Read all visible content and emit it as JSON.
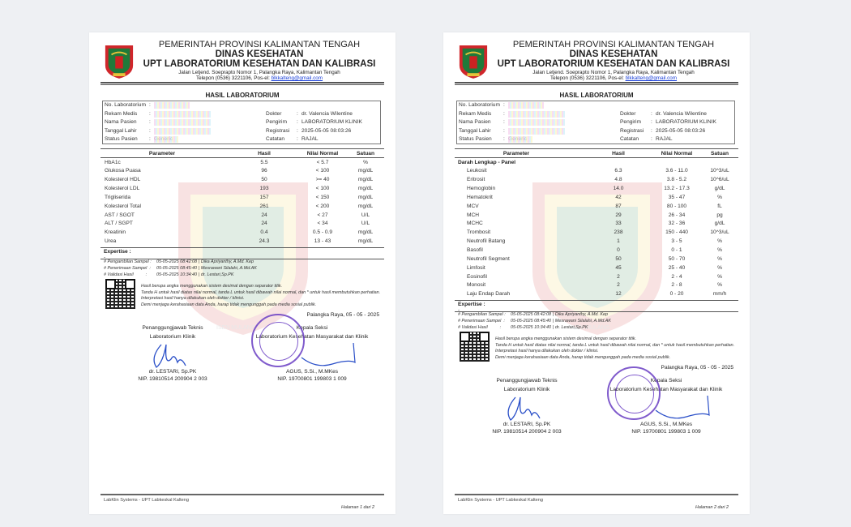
{
  "header": {
    "line1": "PEMERINTAH PROVINSI KALIMANTAN TENGAH",
    "line2": "DINAS KESEHATAN",
    "line3": "UPT LABORATORIUM KESEHATAN DAN KALIBRASI",
    "address": "Jalan Letjend. Soeprapto Nomor 1, Palangka Raya, Kalimantan Tengah",
    "phone": "Telepon (0536) 3221106, Pos-el: ",
    "email": "blkkalteng@gmail.com"
  },
  "title": "HASIL LABORATORIUM",
  "patient": {
    "left": [
      {
        "label": "No. Laboratorium",
        "value": ""
      },
      {
        "label": "Rekam Medis",
        "value": ""
      },
      {
        "label": "Nama Pasien",
        "value": ""
      },
      {
        "label": "Tanggal Lahir",
        "value": ""
      },
      {
        "label": "Status Pasien",
        "value": "Generic"
      }
    ],
    "right": [
      {
        "label": "Dokter",
        "value": "dr. Valencia Wilentine"
      },
      {
        "label": "Pengirim",
        "value": "LABORATORIUM KLINIK"
      },
      {
        "label": "Registrasi",
        "value": "2025-05-05 08:03:26"
      },
      {
        "label": "Catatan",
        "value": "RAJAL"
      }
    ]
  },
  "columns": [
    "Parameter",
    "Hasil",
    "Nilai Normal",
    "Satuan"
  ],
  "pages": [
    {
      "group": "",
      "rows": [
        [
          "HbA1c",
          "5.5",
          "< 5.7",
          "%"
        ],
        [
          "Glukosa Puasa",
          "96",
          "< 100",
          "mg/dL"
        ],
        [
          "Kolesterol HDL",
          "50",
          ">= 40",
          "mg/dL"
        ],
        [
          "Kolesterol LDL",
          "193",
          "< 100",
          "mg/dL"
        ],
        [
          "Trigliserida",
          "157",
          "< 150",
          "mg/dL"
        ],
        [
          "Kolesterol Total",
          "261",
          "< 200",
          "mg/dL"
        ],
        [
          "AST / SGOT",
          "24",
          "< 27",
          "U/L"
        ],
        [
          "ALT / SGPT",
          "24",
          "< 34",
          "U/L"
        ],
        [
          "Kreatinin",
          "0.4",
          "0.5 - 0.9",
          "mg/dL"
        ],
        [
          "Urea",
          "24.3",
          "13 - 43",
          "mg/dL"
        ]
      ],
      "page_label": "Halaman 1 dari 2"
    },
    {
      "group": "Darah Lengkap - Panel",
      "rows": [
        [
          "Leukosit",
          "6.3",
          "3.6 - 11.0",
          "10^3/uL"
        ],
        [
          "Eritrosit",
          "4.8",
          "3.8 - 5.2",
          "10^6/uL"
        ],
        [
          "Hemoglobin",
          "14.0",
          "13.2 - 17.3",
          "g/dL"
        ],
        [
          "Hematokrit",
          "42",
          "35 - 47",
          "%"
        ],
        [
          "MCV",
          "87",
          "80 - 100",
          "fL"
        ],
        [
          "MCH",
          "29",
          "26 - 34",
          "pg"
        ],
        [
          "MCHC",
          "33",
          "32 - 36",
          "g/dL"
        ],
        [
          "Trombosit",
          "238",
          "150 - 440",
          "10^3/uL"
        ],
        [
          "Neutrofil Batang",
          "1",
          "3 - 5",
          "%"
        ],
        [
          "Basofil",
          "0",
          "0 - 1",
          "%"
        ],
        [
          "Neutrofil Segment",
          "50",
          "50 - 70",
          "%"
        ],
        [
          "Limfosit",
          "45",
          "25 - 40",
          "%"
        ],
        [
          "Eosinofil",
          "2",
          "2 - 4",
          "%"
        ],
        [
          "Monosit",
          "2",
          "2 - 8",
          "%"
        ],
        [
          "Laju Endap Darah",
          "12",
          "0 - 20",
          "mm/h"
        ]
      ],
      "page_label": "Halaman 2 dari 2"
    }
  ],
  "expertise_label": "Expertise :",
  "expertise_value": "-",
  "samples": [
    {
      "label": "# Pengambilan Sampel :",
      "time": "05-05-2025 08:42:08",
      "by": "| Dika Apriyanthy, A.Md. Kep"
    },
    {
      "label": "# Penerimaan Sampel  :",
      "time": "05-05-2025 08:45:40",
      "by": "| Mesrawani Silalahi, A.Md.AK"
    },
    {
      "label": "# Validasi Hasil          :",
      "time": "05-05-2025 10:34:40",
      "by": "| dr. Lestari,Sp.PK"
    }
  ],
  "notes": [
    "Hasil berupa angka menggunakan sistem desimal dengan separator titik.",
    "Tanda H untuk hasil diatas nilai normal, tanda L untuk hasil dibawah nilai normal, dan * untuk hasil membutuhkan perhatian.",
    "Interpretasi hasil hanya dilakukan oleh dokter / klinisi.",
    "Demi menjaga kerahasiaan data Anda, harap tidak mengunggah pada media sosial publik."
  ],
  "place_date": "Palangka Raya, 05 - 05 - 2025",
  "signers": [
    {
      "role1": "Penanggungjawab Teknis",
      "role2": "Laboratorium Klinik",
      "name": "dr. LESTARI, Sp.PK",
      "nip": "NIP. 19810514 200904 2 003"
    },
    {
      "role1": "Kepala Seksi",
      "role2": "Laboratorium Kesehatan Masyarakat dan Klinik",
      "name": "AGUS, S.Si., M.MKes",
      "nip": "NIP. 19700801 199803 1 009"
    }
  ],
  "watermark_text": "ISEN MULANG",
  "footer": "LabKlin Systems - UPT Labkeskal Kalteng",
  "colors": {
    "link": "#1a3fd8",
    "stamp": "#6a3fc4",
    "signature": "#2a4fc8",
    "logo_red": "#d0262b",
    "logo_green": "#1f7a3a"
  }
}
